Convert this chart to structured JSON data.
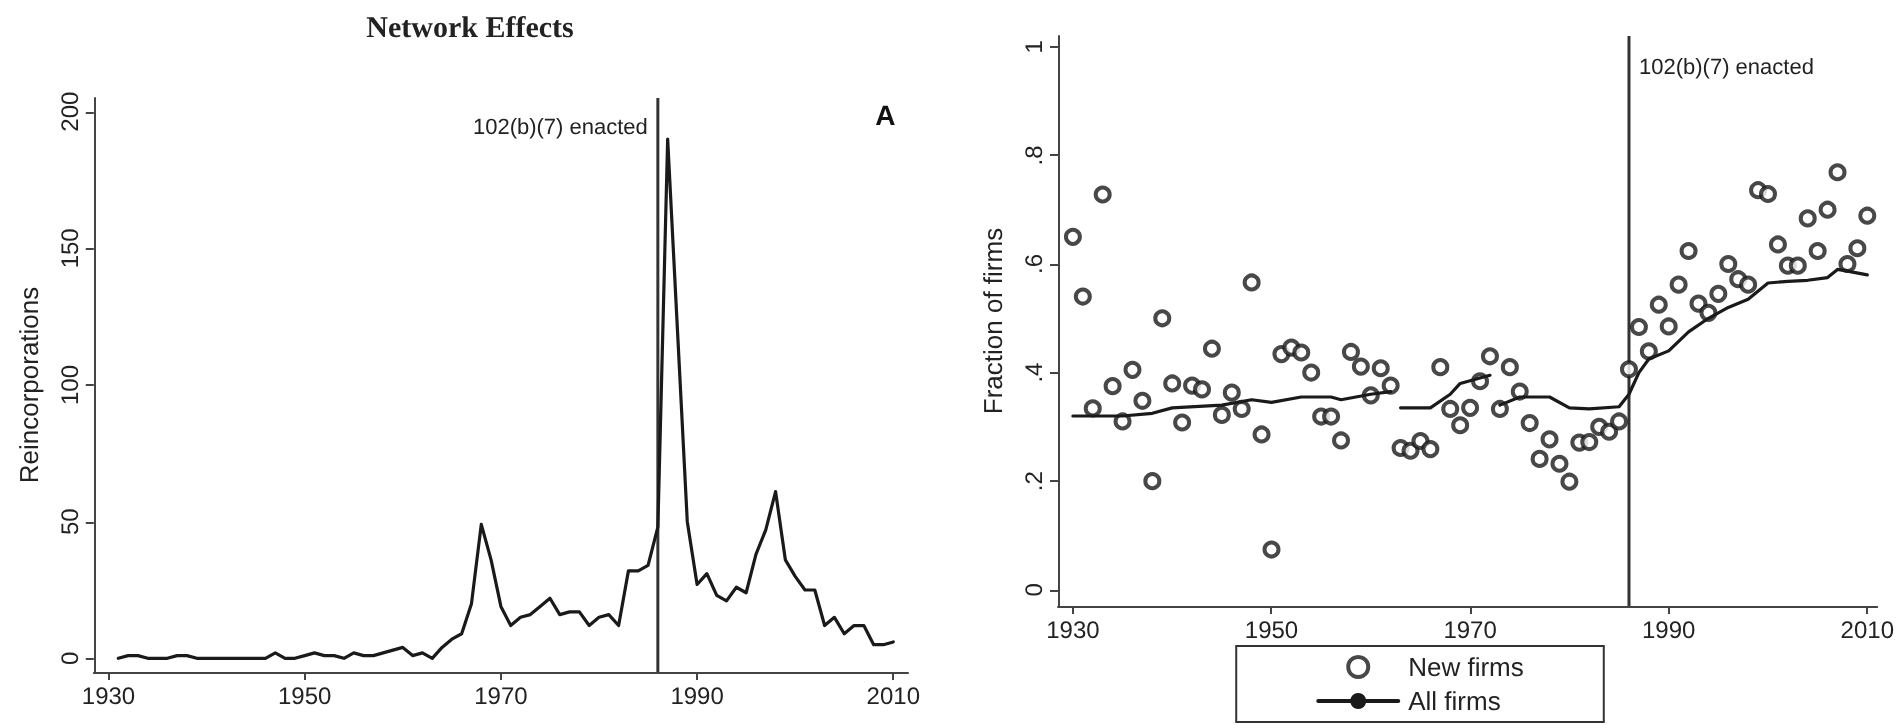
{
  "chart_data": [
    {
      "type": "line",
      "title": "Network Effects",
      "ylabel": "Reincorporations",
      "annotations": [
        "A"
      ],
      "marker": "none",
      "x": [
        1931,
        1932,
        1933,
        1934,
        1935,
        1936,
        1937,
        1938,
        1939,
        1940,
        1941,
        1942,
        1943,
        1944,
        1945,
        1946,
        1947,
        1948,
        1949,
        1950,
        1951,
        1952,
        1953,
        1954,
        1955,
        1956,
        1957,
        1958,
        1959,
        1960,
        1961,
        1962,
        1963,
        1964,
        1965,
        1966,
        1967,
        1968,
        1969,
        1970,
        1971,
        1972,
        1973,
        1974,
        1975,
        1976,
        1977,
        1978,
        1979,
        1980,
        1981,
        1982,
        1983,
        1984,
        1985,
        1986,
        1987,
        1988,
        1989,
        1990,
        1991,
        1992,
        1993,
        1994,
        1995,
        1996,
        1997,
        1998,
        1999,
        2000,
        2001,
        2002,
        2003,
        2004,
        2005,
        2006,
        2007,
        2008,
        2009,
        2010
      ],
      "series": [
        {
          "color": "#1a1a1a",
          "values": [
            0,
            1,
            1,
            0,
            0,
            0,
            1,
            1,
            0,
            0,
            0,
            0,
            0,
            0,
            0,
            0,
            2,
            0,
            0,
            1,
            2,
            1,
            1,
            0,
            2,
            1,
            1,
            2,
            3,
            4,
            1,
            2,
            0,
            4,
            7,
            9,
            20,
            49,
            36,
            19,
            12,
            15,
            16,
            19,
            22,
            16,
            17,
            17,
            12,
            15,
            16,
            12,
            32,
            32,
            34,
            48,
            190,
            120,
            50,
            27,
            31,
            23,
            21,
            26,
            24,
            38,
            47,
            61,
            36,
            30,
            25,
            25,
            12,
            15,
            9,
            12,
            12,
            5,
            5,
            6
          ]
        }
      ],
      "xlim": [
        1928.5,
        2011.5
      ],
      "xticks": [
        1930,
        1950,
        1970,
        1990,
        2010
      ],
      "ylim": [
        -5,
        205
      ],
      "yticks": [
        0,
        50,
        100,
        150,
        200
      ],
      "ref_lines": [
        {
          "axis": "x",
          "value": 1986,
          "label": "102(b)(7) enacted",
          "color": "#333333"
        }
      ]
    },
    {
      "type": "scatter",
      "ylabel": "Fraction of firms",
      "marker": "circle",
      "legend": "bottom",
      "series": [
        {
          "name": "New firms",
          "color": "#1a1a1a",
          "x": [
            1930,
            1931,
            1932,
            1933,
            1934,
            1935,
            1936,
            1937,
            1938,
            1939,
            1940,
            1941,
            1942,
            1943,
            1944,
            1945,
            1946,
            1947,
            1948,
            1949,
            1950,
            1951,
            1952,
            1953,
            1954,
            1955,
            1956,
            1957,
            1958,
            1959,
            1960,
            1961,
            1962,
            1963,
            1964,
            1965,
            1966,
            1967,
            1968,
            1969,
            1970,
            1971,
            1972,
            1973,
            1974,
            1975,
            1976,
            1977,
            1978,
            1979,
            1980,
            1981,
            1982,
            1983,
            1984,
            1985,
            1986,
            1987,
            1988,
            1989,
            1990,
            1991,
            1992,
            1993,
            1994,
            1995,
            1996,
            1997,
            1998,
            1999,
            2000,
            2001,
            2002,
            2003,
            2004,
            2005,
            2006,
            2007,
            2008,
            2009,
            2010
          ],
          "values": [
            0.65,
            0.54,
            0.334,
            0.728,
            0.375,
            0.31,
            0.405,
            0.348,
            0.2,
            0.5,
            0.38,
            0.308,
            0.376,
            0.369,
            0.444,
            0.322,
            0.363,
            0.333,
            0.566,
            0.286,
            0.074,
            0.434,
            0.446,
            0.437,
            0.4,
            0.319,
            0.319,
            0.275,
            0.438,
            0.411,
            0.358,
            0.408,
            0.376,
            0.261,
            0.256,
            0.274,
            0.259,
            0.41,
            0.333,
            0.303,
            0.335,
            0.384,
            0.43,
            0.333,
            0.41,
            0.365,
            0.307,
            0.241,
            0.277,
            0.232,
            0.199,
            0.271,
            0.272,
            0.3,
            0.291,
            0.31,
            0.406,
            0.484,
            0.439,
            0.525,
            0.485,
            0.562,
            0.624,
            0.527,
            0.51,
            0.545,
            0.6,
            0.572,
            0.562,
            0.736,
            0.729,
            0.636,
            0.597,
            0.597,
            0.684,
            0.624,
            0.7,
            0.769,
            0.6,
            0.629,
            0.689
          ]
        },
        {
          "name": "All firms",
          "type": "line",
          "marker": "none",
          "color": "#1a1a1a",
          "x": [
            1930,
            1935,
            1938,
            1940,
            1945,
            1948,
            1950,
            1953,
            1956,
            1957,
            1960,
            1962,
            1962.5,
            1963,
            1966,
            1968,
            1969,
            1972,
            1972.5,
            1973,
            1975,
            1978,
            1980,
            1982,
            1985,
            1986,
            1987,
            1988,
            1990,
            1992,
            1994,
            1996,
            1998,
            2000,
            2002,
            2004,
            2006,
            2007,
            2008,
            2010
          ],
          "values": [
            0.32,
            0.32,
            0.325,
            0.335,
            0.34,
            0.35,
            0.345,
            0.355,
            0.355,
            0.35,
            0.36,
            0.365,
            null,
            0.335,
            0.335,
            0.36,
            0.38,
            0.395,
            null,
            0.34,
            0.355,
            0.355,
            0.335,
            0.333,
            0.337,
            0.36,
            0.4,
            0.425,
            0.44,
            0.475,
            0.5,
            0.52,
            0.535,
            0.565,
            0.568,
            0.57,
            0.575,
            0.59,
            0.587,
            0.58
          ]
        }
      ],
      "xlim": [
        1928.5,
        2011
      ],
      "xticks": [
        1930,
        1950,
        1970,
        1990,
        2010
      ],
      "ylim": [
        -0.03,
        1.02
      ],
      "yticks": [
        0,
        {
          "value": 0.2,
          "label": ".2"
        },
        {
          "value": 0.4,
          "label": ".4"
        },
        {
          "value": 0.6,
          "label": ".6"
        },
        {
          "value": 0.8,
          "label": ".8"
        },
        1
      ],
      "ref_lines": [
        {
          "axis": "x",
          "value": 1986,
          "label": "102(b)(7) enacted",
          "color": "#333333"
        }
      ]
    }
  ]
}
